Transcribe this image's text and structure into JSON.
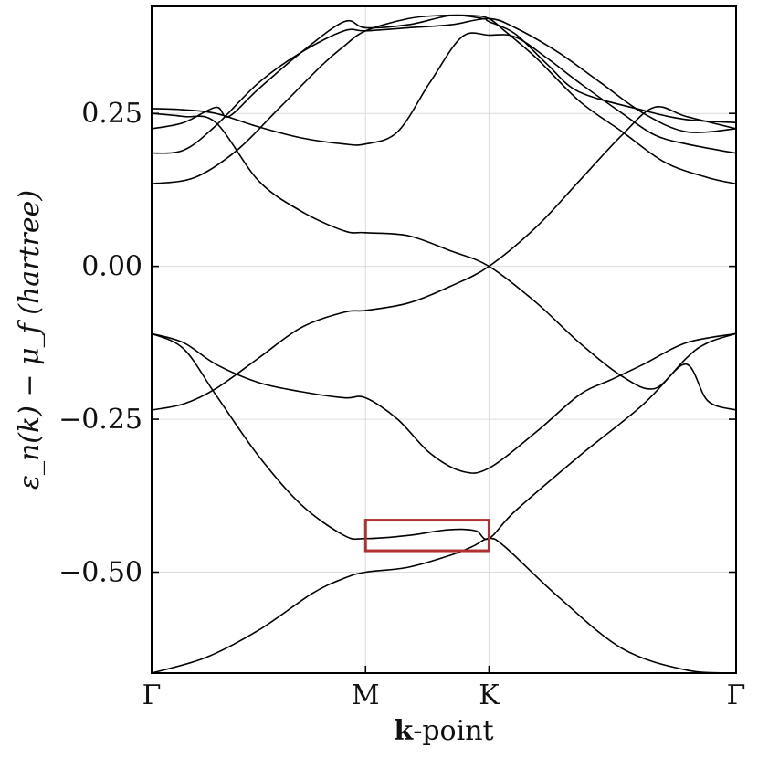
{
  "chart_data": {
    "type": "line",
    "title": "",
    "xlabel_bold": "k",
    "xlabel_rest": "-point",
    "ylabel": "ε_n(k) − μ_f (hartree)",
    "x_ticks": [
      {
        "pos": 0.0,
        "label": "Γ"
      },
      {
        "pos": 1.0,
        "label": "M"
      },
      {
        "pos": 1.577,
        "label": "K"
      },
      {
        "pos": 2.732,
        "label": "Γ"
      }
    ],
    "xlim": [
      0.0,
      2.732
    ],
    "ylim": [
      -0.665,
      0.425
    ],
    "y_ticks": [
      {
        "value": 0.25,
        "label": "0.25"
      },
      {
        "value": 0.0,
        "label": "0.00"
      },
      {
        "value": -0.25,
        "label": "−0.25"
      },
      {
        "value": -0.5,
        "label": "−0.50"
      }
    ],
    "grid": true,
    "highlight_box": {
      "x0": 1.0,
      "x1": 1.577,
      "y0": -0.465,
      "y1": -0.415,
      "color": "#b03030"
    },
    "series": [
      {
        "name": "band-1",
        "points": [
          [
            0,
            -0.665
          ],
          [
            0.25,
            -0.64
          ],
          [
            0.5,
            -0.595
          ],
          [
            0.75,
            -0.535
          ],
          [
            0.9,
            -0.51
          ],
          [
            1.0,
            -0.5
          ],
          [
            1.2,
            -0.492
          ],
          [
            1.4,
            -0.472
          ],
          [
            1.5,
            -0.458
          ],
          [
            1.577,
            -0.445
          ],
          [
            1.65,
            -0.458
          ],
          [
            1.9,
            -0.54
          ],
          [
            2.2,
            -0.625
          ],
          [
            2.5,
            -0.66
          ],
          [
            2.732,
            -0.665
          ]
        ]
      },
      {
        "name": "band-2",
        "points": [
          [
            0,
            -0.11
          ],
          [
            0.15,
            -0.135
          ],
          [
            0.3,
            -0.21
          ],
          [
            0.5,
            -0.31
          ],
          [
            0.7,
            -0.39
          ],
          [
            0.9,
            -0.44
          ],
          [
            1.0,
            -0.445
          ],
          [
            1.2,
            -0.44
          ],
          [
            1.35,
            -0.432
          ],
          [
            1.45,
            -0.43
          ],
          [
            1.52,
            -0.433
          ],
          [
            1.577,
            -0.445
          ],
          [
            1.7,
            -0.4
          ],
          [
            2.0,
            -0.31
          ],
          [
            2.3,
            -0.225
          ],
          [
            2.5,
            -0.15
          ],
          [
            2.6,
            -0.125
          ],
          [
            2.732,
            -0.11
          ]
        ]
      },
      {
        "name": "band-3",
        "points": [
          [
            0,
            -0.11
          ],
          [
            0.15,
            -0.125
          ],
          [
            0.3,
            -0.16
          ],
          [
            0.5,
            -0.19
          ],
          [
            0.7,
            -0.205
          ],
          [
            0.9,
            -0.215
          ],
          [
            1.0,
            -0.215
          ],
          [
            1.15,
            -0.25
          ],
          [
            1.3,
            -0.305
          ],
          [
            1.45,
            -0.335
          ],
          [
            1.577,
            -0.33
          ],
          [
            1.8,
            -0.27
          ],
          [
            2.0,
            -0.21
          ],
          [
            2.15,
            -0.185
          ],
          [
            2.3,
            -0.16
          ],
          [
            2.5,
            -0.125
          ],
          [
            2.732,
            -0.11
          ]
        ]
      },
      {
        "name": "band-4",
        "points": [
          [
            0,
            -0.235
          ],
          [
            0.15,
            -0.225
          ],
          [
            0.3,
            -0.2
          ],
          [
            0.5,
            -0.15
          ],
          [
            0.7,
            -0.1
          ],
          [
            0.9,
            -0.075
          ],
          [
            1.0,
            -0.072
          ],
          [
            1.2,
            -0.06
          ],
          [
            1.4,
            -0.032
          ],
          [
            1.577,
            0.0
          ],
          [
            1.8,
            0.065
          ],
          [
            2.0,
            0.14
          ],
          [
            2.2,
            0.215
          ],
          [
            2.35,
            0.26
          ],
          [
            2.5,
            0.245
          ],
          [
            2.732,
            0.225
          ]
        ]
      },
      {
        "name": "band-5",
        "points": [
          [
            0,
            0.25
          ],
          [
            0.15,
            0.245
          ],
          [
            0.3,
            0.235
          ],
          [
            0.5,
            0.14
          ],
          [
            0.7,
            0.09
          ],
          [
            0.9,
            0.058
          ],
          [
            1.0,
            0.055
          ],
          [
            1.2,
            0.05
          ],
          [
            1.4,
            0.025
          ],
          [
            1.577,
            0.0
          ],
          [
            1.8,
            -0.06
          ],
          [
            2.0,
            -0.125
          ],
          [
            2.2,
            -0.18
          ],
          [
            2.35,
            -0.2
          ],
          [
            2.5,
            -0.16
          ],
          [
            2.6,
            -0.22
          ],
          [
            2.732,
            -0.235
          ]
        ]
      },
      {
        "name": "band-6",
        "points": [
          [
            0,
            0.258
          ],
          [
            0.15,
            0.256
          ],
          [
            0.3,
            0.25
          ],
          [
            0.5,
            0.228
          ],
          [
            0.7,
            0.21
          ],
          [
            0.9,
            0.2
          ],
          [
            1.0,
            0.2
          ],
          [
            1.15,
            0.22
          ],
          [
            1.3,
            0.3
          ],
          [
            1.45,
            0.375
          ],
          [
            1.577,
            0.378
          ],
          [
            1.7,
            0.375
          ],
          [
            1.85,
            0.34
          ],
          [
            2.0,
            0.3
          ],
          [
            2.2,
            0.25
          ],
          [
            2.35,
            0.215
          ],
          [
            2.5,
            0.2
          ],
          [
            2.732,
            0.185
          ]
        ]
      },
      {
        "name": "band-7",
        "points": [
          [
            0,
            0.225
          ],
          [
            0.15,
            0.235
          ],
          [
            0.3,
            0.26
          ],
          [
            0.36,
            0.245
          ],
          [
            0.5,
            0.29
          ],
          [
            0.7,
            0.35
          ],
          [
            0.9,
            0.4
          ],
          [
            1.0,
            0.39
          ],
          [
            1.2,
            0.395
          ],
          [
            1.4,
            0.41
          ],
          [
            1.55,
            0.405
          ],
          [
            1.577,
            0.4
          ],
          [
            1.7,
            0.38
          ],
          [
            1.85,
            0.33
          ],
          [
            2.0,
            0.285
          ],
          [
            2.3,
            0.255
          ],
          [
            2.5,
            0.24
          ],
          [
            2.732,
            0.235
          ]
        ]
      },
      {
        "name": "band-8",
        "points": [
          [
            0,
            0.185
          ],
          [
            0.15,
            0.19
          ],
          [
            0.3,
            0.23
          ],
          [
            0.5,
            0.3
          ],
          [
            0.7,
            0.35
          ],
          [
            0.9,
            0.385
          ],
          [
            1.0,
            0.385
          ],
          [
            1.2,
            0.39
          ],
          [
            1.4,
            0.395
          ],
          [
            1.577,
            0.405
          ],
          [
            1.7,
            0.39
          ],
          [
            1.9,
            0.35
          ],
          [
            2.1,
            0.3
          ],
          [
            2.3,
            0.25
          ],
          [
            2.5,
            0.22
          ],
          [
            2.732,
            0.225
          ]
        ]
      },
      {
        "name": "band-9",
        "points": [
          [
            0,
            0.135
          ],
          [
            0.2,
            0.145
          ],
          [
            0.4,
            0.19
          ],
          [
            0.6,
            0.26
          ],
          [
            0.8,
            0.33
          ],
          [
            0.9,
            0.36
          ],
          [
            1.0,
            0.385
          ],
          [
            1.2,
            0.405
          ],
          [
            1.35,
            0.41
          ],
          [
            1.5,
            0.41
          ],
          [
            1.577,
            0.405
          ],
          [
            1.65,
            0.385
          ],
          [
            1.8,
            0.34
          ],
          [
            2.0,
            0.27
          ],
          [
            2.2,
            0.22
          ],
          [
            2.4,
            0.17
          ],
          [
            2.6,
            0.145
          ],
          [
            2.732,
            0.135
          ]
        ]
      }
    ]
  }
}
